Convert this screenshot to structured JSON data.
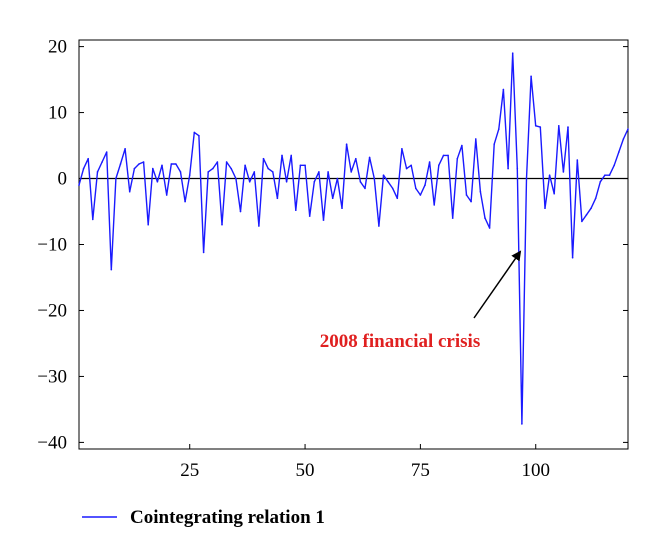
{
  "chart_data": {
    "type": "line",
    "title": "",
    "xlabel": "",
    "ylabel": "",
    "xlim": [
      1,
      120
    ],
    "ylim": [
      -41,
      21
    ],
    "x_ticks": [
      25,
      50,
      75,
      100
    ],
    "y_ticks": [
      20,
      10,
      0,
      -10,
      -20,
      -30,
      -40
    ],
    "x_tick_labels": [
      "25",
      "50",
      "75",
      "100"
    ],
    "y_tick_labels": [
      "20",
      "10",
      "0",
      "−10",
      "−20",
      "−30",
      "−40"
    ],
    "grid": false,
    "zero_line": true,
    "legend": {
      "placement": "bottom-left"
    },
    "series": [
      {
        "name": "Cointegrating relation 1",
        "color": "#1a1aff",
        "x": [
          1,
          2,
          3,
          4,
          5,
          6,
          7,
          8,
          9,
          10,
          11,
          12,
          13,
          14,
          15,
          16,
          17,
          18,
          19,
          20,
          21,
          22,
          23,
          24,
          25,
          26,
          27,
          28,
          29,
          30,
          31,
          32,
          33,
          34,
          35,
          36,
          37,
          38,
          39,
          40,
          41,
          42,
          43,
          44,
          45,
          46,
          47,
          48,
          49,
          50,
          51,
          52,
          53,
          54,
          55,
          56,
          57,
          58,
          59,
          60,
          61,
          62,
          63,
          64,
          65,
          66,
          67,
          68,
          69,
          70,
          71,
          72,
          73,
          74,
          75,
          76,
          77,
          78,
          79,
          80,
          81,
          82,
          83,
          84,
          85,
          86,
          87,
          88,
          89,
          90,
          91,
          92,
          93,
          94,
          95,
          96,
          97,
          98,
          99,
          100,
          101,
          102,
          103,
          104,
          105,
          106,
          107,
          108,
          109,
          110,
          111,
          112,
          113,
          114,
          115,
          116,
          117,
          118,
          119,
          120
        ],
        "values": [
          -1.0,
          1.5,
          3.0,
          -6.2,
          1.0,
          2.5,
          4.0,
          -13.8,
          0.0,
          2.2,
          4.5,
          -2.0,
          1.5,
          2.2,
          2.5,
          -7.0,
          1.5,
          -0.5,
          2.0,
          -2.5,
          2.2,
          2.2,
          1.0,
          -3.5,
          0.5,
          7.0,
          6.5,
          -11.2,
          1.0,
          1.5,
          2.5,
          -7.0,
          2.5,
          1.5,
          0.0,
          -5.0,
          2.0,
          -0.5,
          1.0,
          -7.2,
          3.0,
          1.5,
          1.0,
          -3.0,
          3.5,
          -0.5,
          3.5,
          -4.8,
          2.0,
          2.0,
          -5.7,
          -0.5,
          1.0,
          -6.3,
          1.0,
          -3.0,
          0.0,
          -4.5,
          5.2,
          1.0,
          3.0,
          -0.5,
          -1.5,
          3.2,
          0.0,
          -7.2,
          0.5,
          -0.5,
          -1.5,
          -3.0,
          4.5,
          1.5,
          2.0,
          -1.5,
          -2.5,
          -1.0,
          2.5,
          -4.0,
          2.0,
          3.5,
          3.5,
          -6.0,
          3.0,
          5.0,
          -2.5,
          -3.5,
          6.0,
          -2.0,
          -6.0,
          -7.5,
          5.2,
          7.5,
          13.5,
          1.5,
          19.0,
          1.5,
          -37.2,
          0.0,
          15.5,
          8.0,
          7.8,
          -4.5,
          0.5,
          -2.3,
          8.0,
          1.0,
          7.8,
          -12.0,
          2.8,
          -6.5,
          -5.5,
          -4.5,
          -3.0,
          -0.5,
          0.5,
          0.5,
          2.0,
          4.0,
          6.0,
          7.5
        ]
      }
    ],
    "annotations": [
      {
        "text": "2008 financial crisis",
        "x": 98,
        "y": -10,
        "arrow": true
      }
    ]
  }
}
